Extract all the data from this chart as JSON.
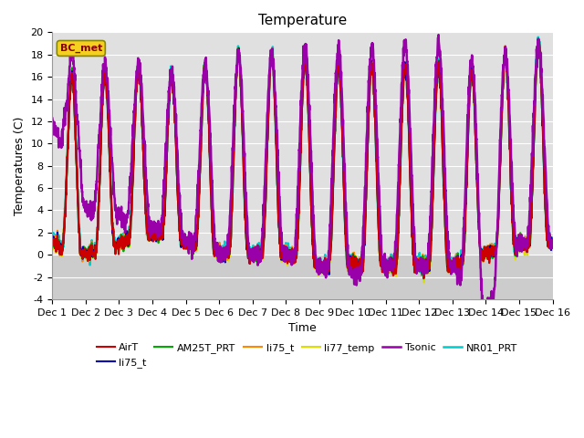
{
  "title": "Temperature",
  "xlabel": "Time",
  "ylabel": "Temperatures (C)",
  "xlim": [
    0,
    15
  ],
  "ylim": [
    -4,
    20
  ],
  "yticks": [
    -4,
    -2,
    0,
    2,
    4,
    6,
    8,
    10,
    12,
    14,
    16,
    18,
    20
  ],
  "xtick_labels": [
    "Dec 1",
    "Dec 2",
    "Dec 3",
    "Dec 4",
    "Dec 5",
    "Dec 6",
    "Dec 7",
    "Dec 8",
    "Dec 9",
    "Dec 10",
    "Dec 11",
    "Dec 12",
    "Dec 13",
    "Dec 14",
    "Dec 15",
    "Dec 16"
  ],
  "legend_labels": [
    "AirT",
    "li75_t",
    "AM25T_PRT",
    "li75_t",
    "li77_temp",
    "Tsonic",
    "NR01_PRT"
  ],
  "legend_colors": [
    "#cc0000",
    "#0000bb",
    "#00aa00",
    "#ff8800",
    "#dddd00",
    "#9900aa",
    "#00cccc"
  ],
  "legend_lws": [
    1.5,
    1.5,
    1.5,
    1.5,
    1.5,
    1.8,
    1.8
  ],
  "annotation_text": "BC_met",
  "bg_above_zero": "#e0e0e0",
  "bg_below_zero": "#cccccc",
  "grid_color": "#ffffff",
  "title_fontsize": 11,
  "axis_fontsize": 9,
  "tick_fontsize": 8
}
